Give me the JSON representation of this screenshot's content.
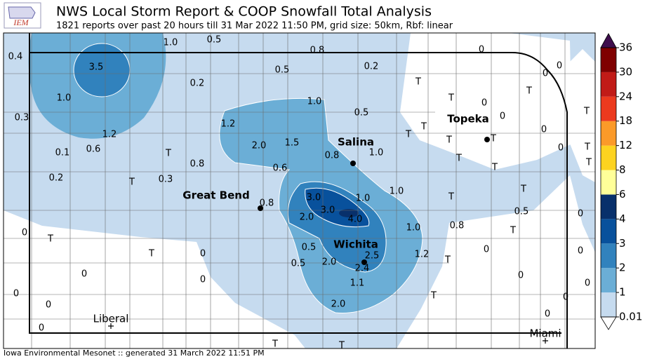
{
  "header": {
    "title": "NWS Local Storm Report & COOP Snowfall Total Analysis",
    "subtitle": "1821 reports over past 20 hours till 31 Mar 2022 11:50 PM, grid size: 50km, Rbf: linear"
  },
  "map": {
    "cities": [
      "Topeka",
      "Salina",
      "Great Bend",
      "Wichita",
      "Liberal",
      "Miami"
    ],
    "labels": [
      "1.0",
      "0.5",
      "0.4",
      "0.8",
      "0",
      "3.5",
      "0.5",
      "0.2",
      "0",
      "0",
      "0.2",
      "T",
      "T",
      "0",
      "1.0",
      "1.0",
      "T",
      "0.3",
      "0.5",
      "0",
      "T",
      "1.2",
      "T",
      "T",
      "0",
      "1.2",
      "2.0",
      "1.5",
      "T",
      "T",
      "T",
      "0.1",
      "0.6",
      "T",
      "0.8",
      "1.0",
      "T",
      "0",
      "T",
      "0.8",
      "0.6",
      "T",
      "0.2",
      "T",
      "0.3",
      "3.0",
      "1.0",
      "1.0",
      "T",
      "T",
      "0.8",
      "3.0",
      "0.5",
      "2.0",
      "4.0",
      "0",
      "0",
      "T",
      "1.0",
      "0.8",
      "T",
      "0.5",
      "T",
      "0",
      "2.5",
      "1.2",
      "0",
      "0",
      "0.5",
      "2.0",
      "2.4",
      "T",
      "0",
      "0",
      "0",
      "1.1",
      "0",
      "0",
      "T",
      "0",
      "0",
      "2.0",
      "0",
      "0",
      "T",
      "T"
    ]
  },
  "colorbar": {
    "ticks": [
      0.01,
      1,
      2,
      3,
      4,
      6,
      8,
      12,
      18,
      24,
      30,
      36
    ],
    "colors": [
      "#c6dbef",
      "#6baed6",
      "#3182bd",
      "#08519c",
      "#08306b",
      "#ffff99",
      "#fdd320",
      "#fb9a29",
      "#ec3a1e",
      "#c11b17",
      "#7f0000"
    ],
    "over_color": "#3f0e4d",
    "under_color": "#ffffff"
  },
  "footer": "Iowa Environmental Mesonet :: generated 31 March 2022 11:51 PM"
}
